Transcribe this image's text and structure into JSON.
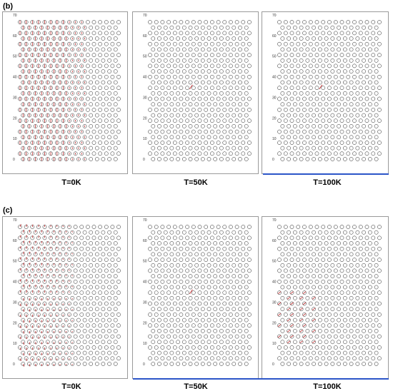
{
  "figure": {
    "rows": [
      {
        "label": "(b)",
        "captions": [
          "T=0K",
          "T=50K",
          "T=100K"
        ],
        "yticks": [
          "70",
          "60",
          "50",
          "40",
          "30",
          "20",
          "10",
          "0"
        ]
      },
      {
        "label": "(c)",
        "captions": [
          "T=0K",
          "T=50K",
          "T=100K"
        ],
        "yticks": [
          "70",
          "60",
          "50",
          "40",
          "30",
          "20",
          "10",
          "0"
        ]
      }
    ],
    "colors": {
      "atom": "#222222",
      "arrow": "#c0282a",
      "frame": "#9a9a9a",
      "strip": "#c8c8c8",
      "accent": "#2b55c8"
    }
  }
}
